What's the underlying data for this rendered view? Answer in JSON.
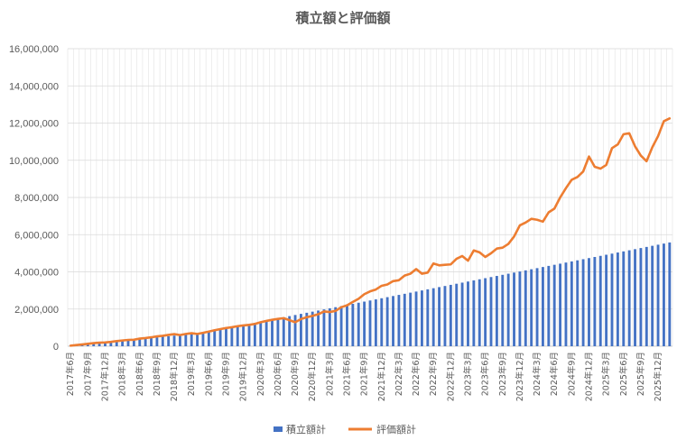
{
  "chart_data": {
    "type": "bar+line",
    "title": "積立額と評価額",
    "ylim": [
      0,
      16000000
    ],
    "y_ticks": [
      "0",
      "2,000,000",
      "4,000,000",
      "6,000,000",
      "8,000,000",
      "10,000,000",
      "12,000,000",
      "14,000,000",
      "16,000,000"
    ],
    "x_tick_labels": [
      "2017年6月",
      "2017年9月",
      "2017年12月",
      "2018年3月",
      "2018年6月",
      "2018年9月",
      "2018年12月",
      "2019年3月",
      "2019年6月",
      "2019年9月",
      "2019年12月",
      "2020年3月",
      "2020年6月",
      "2020年9月",
      "2020年12月",
      "2021年3月",
      "2021年6月",
      "2021年9月",
      "2021年12月",
      "2022年3月",
      "2022年6月",
      "2022年9月",
      "2022年12月",
      "2023年3月",
      "2023年6月",
      "2023年9月",
      "2023年12月",
      "2024年3月",
      "2024年6月",
      "2024年9月",
      "2024年12月",
      "2025年3月",
      "2025年6月",
      "2025年9月",
      "2025年12月"
    ],
    "months_start": "2017年6月",
    "months_count": 105,
    "grid": true,
    "legend_position": "bottom",
    "series": [
      {
        "name": "積立額計",
        "kind": "bar",
        "color": "#4472C4",
        "values": [
          30000,
          60000,
          90000,
          120000,
          150000,
          180000,
          210000,
          240000,
          270000,
          300000,
          330000,
          360000,
          390000,
          420000,
          450000,
          480000,
          510000,
          540000,
          570000,
          600000,
          630000,
          660000,
          690000,
          720000,
          780000,
          840000,
          900000,
          960000,
          1020000,
          1080000,
          1140000,
          1200000,
          1260000,
          1320000,
          1380000,
          1440000,
          1500000,
          1560000,
          1620000,
          1680000,
          1740000,
          1800000,
          1860000,
          1920000,
          1980000,
          2040000,
          2100000,
          2160000,
          2220000,
          2280000,
          2340000,
          2400000,
          2460000,
          2520000,
          2580000,
          2640000,
          2700000,
          2760000,
          2820000,
          2880000,
          2940000,
          3000000,
          3060000,
          3120000,
          3180000,
          3240000,
          3300000,
          3360000,
          3420000,
          3480000,
          3540000,
          3600000,
          3660000,
          3720000,
          3780000,
          3840000,
          3900000,
          3960000,
          4020000,
          4080000,
          4140000,
          4200000,
          4260000,
          4320000,
          4380000,
          4440000,
          4500000,
          4560000,
          4620000,
          4680000,
          4740000,
          4800000,
          4860000,
          4920000,
          4980000,
          5040000,
          5100000,
          5160000,
          5220000,
          5280000,
          5340000,
          5400000,
          5460000,
          5520000,
          5580000
        ]
      },
      {
        "name": "評価額計",
        "kind": "line",
        "color": "#ED7D31",
        "values": [
          30000,
          62000,
          95000,
          130000,
          165000,
          190000,
          205000,
          235000,
          275000,
          310000,
          340000,
          350000,
          410000,
          440000,
          480000,
          530000,
          560000,
          610000,
          650000,
          600000,
          660000,
          700000,
          660000,
          720000,
          790000,
          860000,
          920000,
          980000,
          1020000,
          1080000,
          1120000,
          1150000,
          1200000,
          1290000,
          1360000,
          1420000,
          1470000,
          1510000,
          1400000,
          1290000,
          1460000,
          1560000,
          1630000,
          1720000,
          1870000,
          1840000,
          1900000,
          2100000,
          2200000,
          2380000,
          2550000,
          2800000,
          2950000,
          3050000,
          3250000,
          3320000,
          3500000,
          3550000,
          3800000,
          3900000,
          4150000,
          3900000,
          3960000,
          4450000,
          4350000,
          4380000,
          4400000,
          4700000,
          4850000,
          4600000,
          5150000,
          5050000,
          4800000,
          5000000,
          5250000,
          5300000,
          5500000,
          5900000,
          6500000,
          6650000,
          6850000,
          6800000,
          6700000,
          7200000,
          7400000,
          8000000,
          8500000,
          8950000,
          9100000,
          9400000,
          10200000,
          9650000,
          9550000,
          9750000,
          10650000,
          10850000,
          11400000,
          11450000,
          10750000,
          10250000,
          9950000,
          10700000,
          11300000,
          12100000,
          12250000
        ]
      }
    ]
  }
}
